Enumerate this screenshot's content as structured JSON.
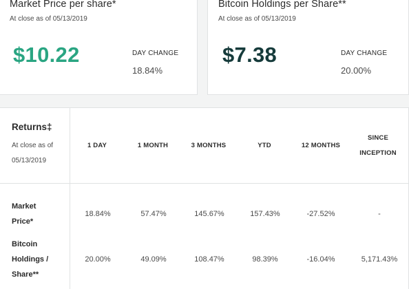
{
  "market_card": {
    "title": "Market Price per share*",
    "subtitle": "At close as of 05/13/2019",
    "price": "$10.22",
    "day_change_label": "DAY CHANGE",
    "day_change_value": "18.84%",
    "price_color": "#2aa582"
  },
  "holdings_card": {
    "title": "Bitcoin Holdings per Share**",
    "subtitle": "At close as of 05/13/2019",
    "price": "$7.38",
    "day_change_label": "DAY CHANGE",
    "day_change_value": "20.00%",
    "price_color": "#163b3b"
  },
  "returns": {
    "title": "Returns‡",
    "subtitle": "At close as of 05/13/2019",
    "columns": [
      "1 DAY",
      "1 MONTH",
      "3 MONTHS",
      "YTD",
      "12 MONTHS",
      "SINCE INCEPTION"
    ],
    "rows": [
      {
        "label": "Market Price*",
        "values": [
          "18.84%",
          "57.47%",
          "145.67%",
          "157.43%",
          "-27.52%",
          "-"
        ]
      },
      {
        "label": "Bitcoin Holdings / Share**",
        "values": [
          "20.00%",
          "49.09%",
          "108.47%",
          "98.39%",
          "-16.04%",
          "5,171.43%"
        ]
      }
    ]
  }
}
